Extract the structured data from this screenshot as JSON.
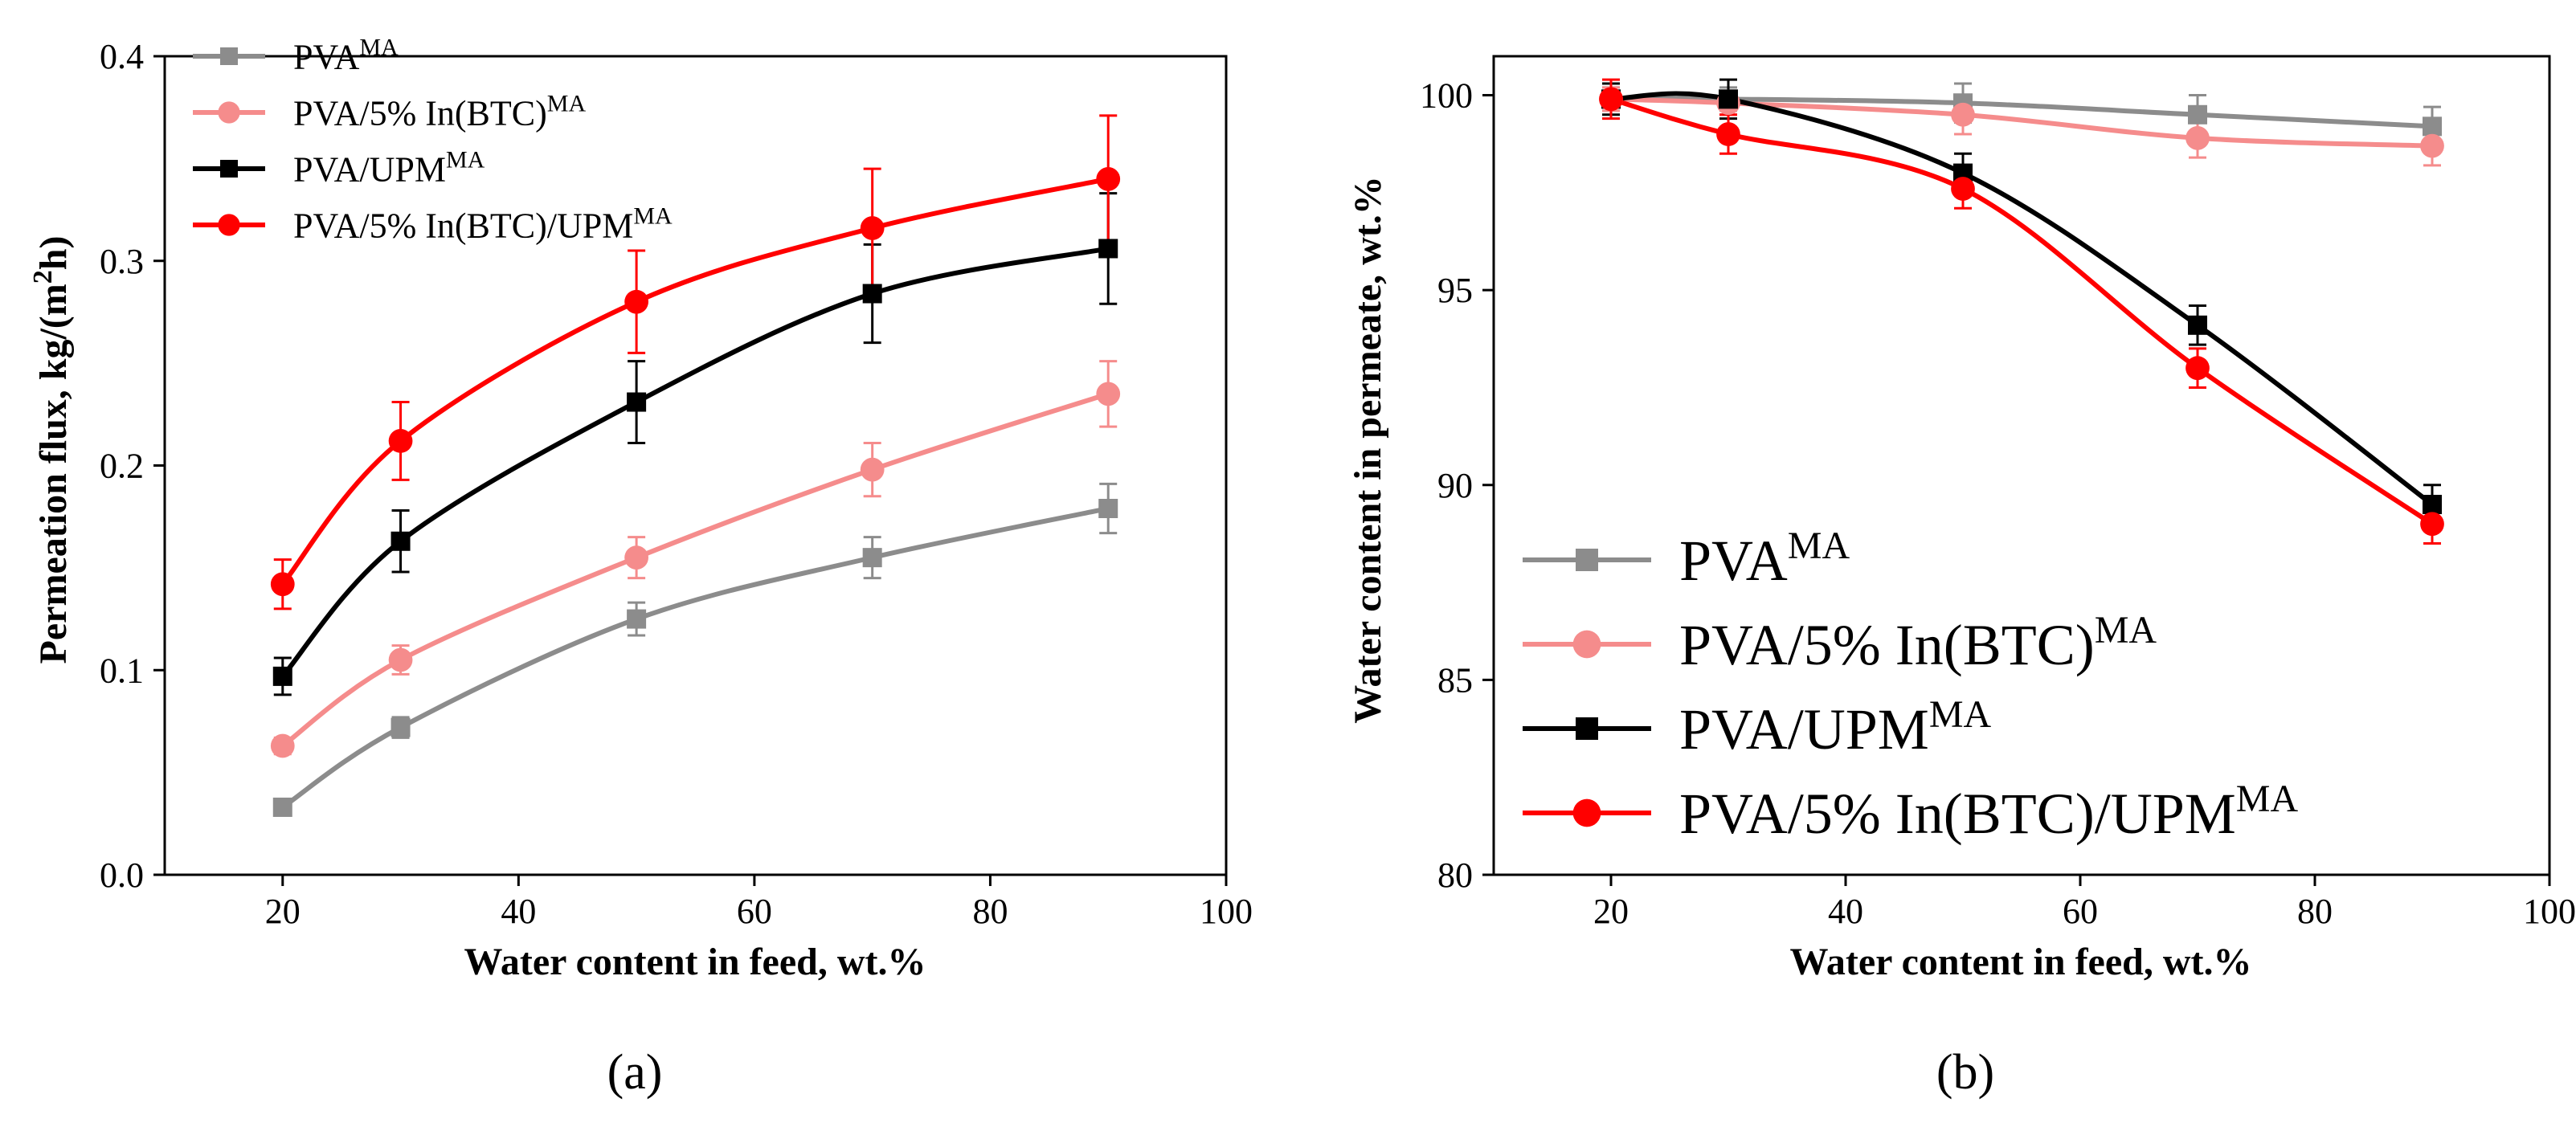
{
  "chart_data": [
    {
      "panel_label": "(a)",
      "type": "line",
      "xlabel": "Water content in feed, wt.%",
      "ylabel": "Permeation flux, kg/(m",
      "ylabel_sup": "2",
      "ylabel_tail": "h)",
      "xlim": [
        10,
        100
      ],
      "ylim": [
        0.0,
        0.4
      ],
      "x_ticks": [
        "20",
        "40",
        "60",
        "80",
        "100"
      ],
      "y_ticks": [
        "0.0",
        "0.1",
        "0.2",
        "0.3",
        "0.4"
      ],
      "x": [
        20,
        30,
        50,
        70,
        90
      ],
      "legend_position": "top-left",
      "series": [
        {
          "name": "PVA",
          "sup": "MA",
          "color": "#8c8c8c",
          "marker": "square",
          "values": [
            0.033,
            0.072,
            0.125,
            0.155,
            0.179
          ],
          "errors": [
            0.004,
            0.005,
            0.008,
            0.01,
            0.012
          ]
        },
        {
          "name": "PVA/5% In(BTC)",
          "sup": "MA",
          "color": "#f58c8c",
          "marker": "circle",
          "values": [
            0.063,
            0.105,
            0.155,
            0.198,
            0.235
          ],
          "errors": [
            0.004,
            0.007,
            0.01,
            0.013,
            0.016
          ]
        },
        {
          "name": "PVA/UPM",
          "sup": "MA",
          "color": "#000000",
          "marker": "square",
          "values": [
            0.097,
            0.163,
            0.231,
            0.284,
            0.306
          ],
          "errors": [
            0.009,
            0.015,
            0.02,
            0.024,
            0.027
          ]
        },
        {
          "name": "PVA/5% In(BTC)/UPM",
          "sup": "MA",
          "color": "#ff0000",
          "marker": "circle",
          "values": [
            0.142,
            0.212,
            0.28,
            0.316,
            0.34
          ],
          "errors": [
            0.012,
            0.019,
            0.025,
            0.029,
            0.031
          ]
        }
      ]
    },
    {
      "panel_label": "(b)",
      "type": "line",
      "xlabel": "Water content in feed, wt.%",
      "ylabel": "Water content in permeate, wt.%",
      "xlim": [
        10,
        100
      ],
      "ylim": [
        80,
        101
      ],
      "x_ticks": [
        "20",
        "40",
        "60",
        "80",
        "100"
      ],
      "y_ticks": [
        "80",
        "85",
        "90",
        "95",
        "100"
      ],
      "x": [
        20,
        30,
        50,
        70,
        90
      ],
      "legend_position": "bottom-left",
      "series": [
        {
          "name": "PVA",
          "sup": "MA",
          "color": "#8c8c8c",
          "marker": "square",
          "values": [
            99.9,
            99.9,
            99.8,
            99.5,
            99.2
          ],
          "errors": [
            0.3,
            0.3,
            0.5,
            0.5,
            0.5
          ]
        },
        {
          "name": "PVA/5% In(BTC)",
          "sup": "MA",
          "color": "#f58c8c",
          "marker": "circle",
          "values": [
            99.9,
            99.8,
            99.5,
            98.9,
            98.7
          ],
          "errors": [
            0.3,
            0.3,
            0.5,
            0.5,
            0.5
          ]
        },
        {
          "name": "PVA/UPM",
          "sup": "MA",
          "color": "#000000",
          "marker": "square",
          "values": [
            99.9,
            99.9,
            98.0,
            94.1,
            89.5
          ],
          "errors": [
            0.4,
            0.5,
            0.5,
            0.5,
            0.5
          ]
        },
        {
          "name": "PVA/5% In(BTC)/UPM",
          "sup": "MA",
          "color": "#ff0000",
          "marker": "circle",
          "values": [
            99.9,
            99.0,
            97.6,
            93.0,
            89.0
          ],
          "errors": [
            0.5,
            0.5,
            0.5,
            0.5,
            0.5
          ]
        }
      ]
    }
  ]
}
